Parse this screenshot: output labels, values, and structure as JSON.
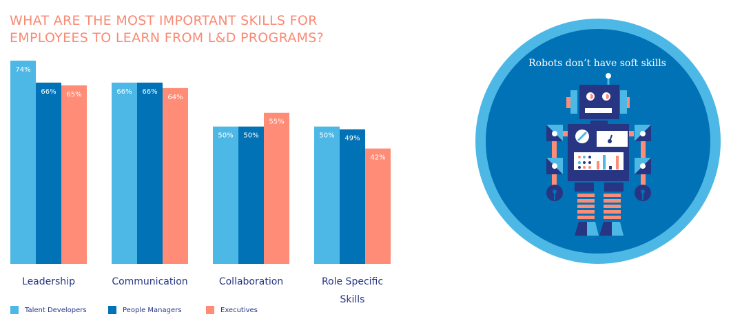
{
  "chart_data": {
    "type": "bar",
    "title": "WHAT ARE THE MOST IMPORTANT SKILLS FOR EMPLOYEES TO LEARN FROM L&D PROGRAMS?",
    "categories": [
      "Leadership",
      "Communication",
      "Collaboration",
      "Role Specific Skills"
    ],
    "series": [
      {
        "name": "Talent Developers",
        "color": "#4db8e5",
        "values": [
          74,
          66,
          50,
          50
        ]
      },
      {
        "name": "People Managers",
        "color": "#0072b5",
        "values": [
          66,
          66,
          50,
          49
        ]
      },
      {
        "name": "Executives",
        "color": "#ff8c76",
        "values": [
          65,
          64,
          55,
          42
        ]
      }
    ],
    "ylim": [
      0,
      74
    ],
    "xlabel": "",
    "ylabel": "",
    "legend": "bottom-left",
    "grid": false
  },
  "illustration": {
    "caption": "Robots don’t have soft skills"
  }
}
